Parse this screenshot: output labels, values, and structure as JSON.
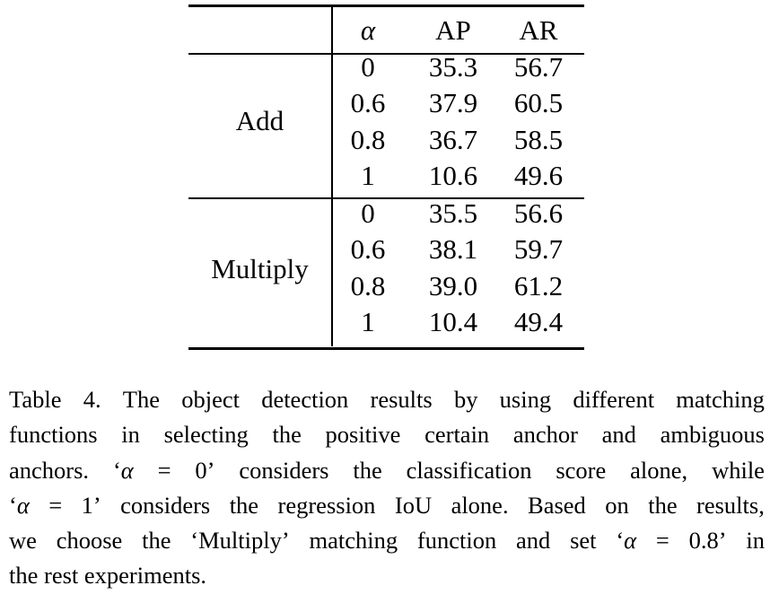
{
  "table": {
    "header": {
      "alpha": "α",
      "ap": "AP",
      "ar": "AR"
    },
    "groups": [
      {
        "method": "Add",
        "rows": [
          {
            "alpha": "0",
            "ap": "35.3",
            "ar": "56.7"
          },
          {
            "alpha": "0.6",
            "ap": "37.9",
            "ar": "60.5"
          },
          {
            "alpha": "0.8",
            "ap": "36.7",
            "ar": "58.5"
          },
          {
            "alpha": "1",
            "ap": "10.6",
            "ar": "49.6"
          }
        ]
      },
      {
        "method": "Multiply",
        "rows": [
          {
            "alpha": "0",
            "ap": "35.5",
            "ar": "56.6"
          },
          {
            "alpha": "0.6",
            "ap": "38.1",
            "ar": "59.7"
          },
          {
            "alpha": "0.8",
            "ap": "39.0",
            "ar": "61.2"
          },
          {
            "alpha": "1",
            "ap": "10.4",
            "ar": "49.4"
          }
        ]
      }
    ]
  },
  "caption": {
    "lines": [
      "Table 4. The object detection results by using different matching",
      "functions in selecting the positive certain anchor and ambiguous",
      "anchors. ‘α = 0’ considers the classification score alone, while",
      "‘α = 1’ considers the regression IoU alone. Based on the results,",
      "we choose the ‘Multiply’ matching function and set ‘α = 0.8’ in",
      "the rest experiments."
    ]
  }
}
